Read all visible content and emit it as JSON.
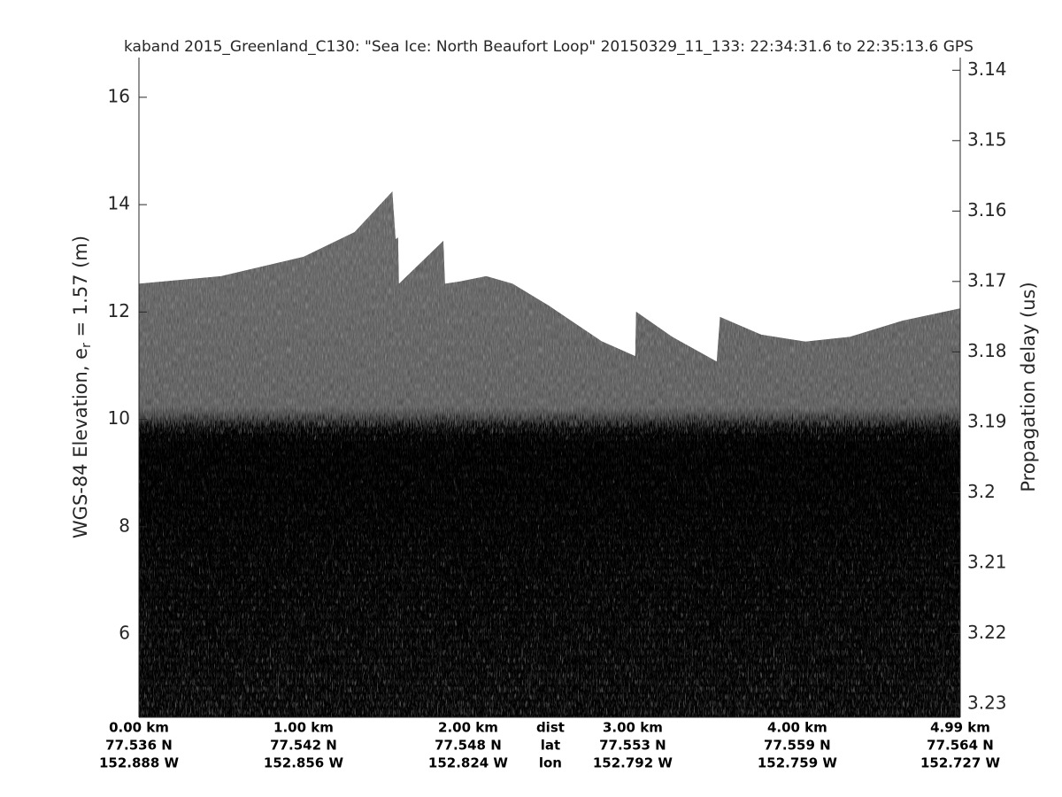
{
  "chart_data": {
    "type": "echogram",
    "title": "kaband 2015_Greenland_C130: \"Sea Ice: North Beaufort Loop\"  20150329_11_133: 22:34:31.6 to 22:35:13.6 GPS",
    "ylabel": {
      "prefix": "WGS-84 Elevation, e",
      "subscript": "r",
      "suffix": " = 1.57 (m)"
    },
    "y2label": "Propagation delay (us)",
    "x": [
      0,
      0.5,
      1.0,
      1.31,
      1.54,
      1.56,
      1.575,
      1.58,
      1.85,
      1.86,
      1.95,
      2.11,
      2.27,
      2.49,
      2.81,
      3.015,
      3.02,
      3.24,
      3.51,
      3.53,
      3.78,
      4.05,
      4.32,
      4.64,
      4.99
    ],
    "values": [
      12.53,
      12.67,
      13.03,
      13.49,
      14.25,
      13.36,
      13.39,
      12.53,
      13.33,
      12.53,
      12.57,
      12.67,
      12.53,
      12.12,
      11.46,
      11.18,
      12.01,
      11.54,
      11.08,
      11.91,
      11.58,
      11.45,
      11.54,
      11.84,
      12.07
    ],
    "xlim": [
      0,
      4.99
    ],
    "xticks": [
      {
        "value": 0,
        "label": "0.00 km"
      },
      {
        "value": 1,
        "label": "1.00 km"
      },
      {
        "value": 2,
        "label": "2.00 km"
      },
      {
        "value": 3,
        "label": "3.00 km"
      },
      {
        "value": 4,
        "label": "4.00 km"
      },
      {
        "value": 4.99,
        "label": "4.99 km"
      }
    ],
    "lat_labels": [
      "77.536 N",
      "77.542 N",
      "77.548 N",
      "77.553 N",
      "77.559 N",
      "77.564 N"
    ],
    "lon_labels": [
      "152.888 W",
      "152.856 W",
      "152.824 W",
      "152.792 W",
      "152.759 W",
      "152.727 W"
    ],
    "row_labels": {
      "x": 2.5,
      "labels": [
        "dist",
        "lat",
        "lon"
      ]
    },
    "ylim": [
      4.45,
      16.74
    ],
    "yticks": [
      6,
      8,
      10,
      12,
      14,
      16
    ],
    "y2lim": [
      3.1382,
      3.2319
    ],
    "y2reverse": true,
    "y2ticks": [
      3.14,
      3.15,
      3.16,
      3.17,
      3.18,
      3.19,
      3.2,
      3.21,
      3.22,
      3.23
    ]
  }
}
